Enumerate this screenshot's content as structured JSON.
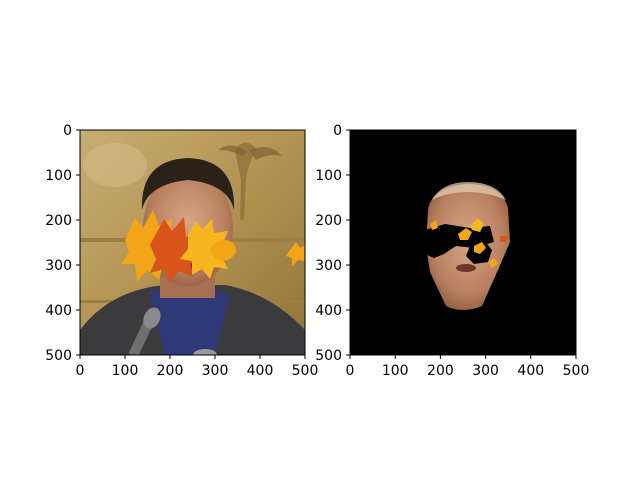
{
  "chart_data": [
    {
      "type": "image",
      "title": "",
      "xlabel": "",
      "ylabel": "",
      "xlim": [
        0,
        500
      ],
      "ylim": [
        500,
        0
      ],
      "xticks": [
        "0",
        "100",
        "200",
        "300",
        "400",
        "500"
      ],
      "yticks": [
        "0",
        "100",
        "200",
        "300",
        "400",
        "500"
      ],
      "content": "photo of a man with orange maple-leaf overlays across the eyes",
      "colors": {
        "background_tan": "#b89a5e",
        "leaf_orange": "#f2a516",
        "leaf_red": "#d9541a",
        "suit": "#3b3b3d"
      }
    },
    {
      "type": "image",
      "title": "",
      "xlabel": "",
      "ylabel": "",
      "xlim": [
        0,
        500
      ],
      "ylim": [
        500,
        0
      ],
      "xticks": [
        "0",
        "100",
        "200",
        "300",
        "400",
        "500"
      ],
      "yticks": [
        "0",
        "100",
        "200",
        "300",
        "400",
        "500"
      ],
      "content": "segmented face region on black background with occluded leaf areas",
      "colors": {
        "background": "#000000",
        "skin": "#c7906f",
        "leaf_orange": "#f2a516"
      }
    }
  ]
}
